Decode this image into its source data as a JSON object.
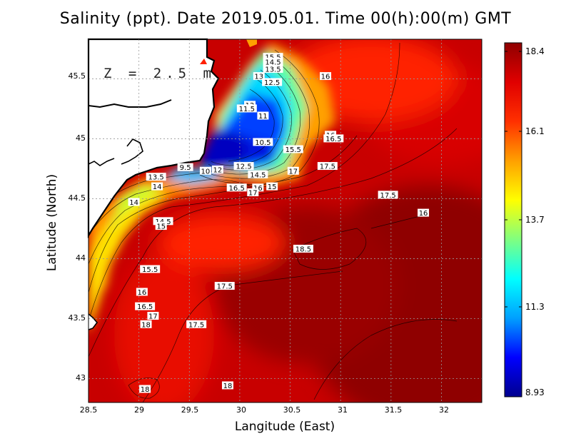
{
  "title": "Salinity (ppt). Date 2019.05.01. Time 00(h):00(m) GMT",
  "depth_label": "Z = 2.5 m",
  "axes": {
    "xlabel": "Langitude (East)",
    "ylabel": "Latitude (North)",
    "xlim": [
      28.5,
      32.4
    ],
    "ylim": [
      42.8,
      45.83
    ],
    "xticks": [
      "28.5",
      "29",
      "29.5",
      "30",
      "30.5",
      "31",
      "31.5",
      "32"
    ],
    "yticks": [
      "43",
      "43.5",
      "44",
      "44.5",
      "45",
      "45.5"
    ]
  },
  "colorbar": {
    "min": 8.93,
    "max": 18.4,
    "ticks": [
      "18.4",
      "16.1",
      "13.7",
      "11.3",
      "8.93"
    ],
    "colormap": [
      "#00008f",
      "#0000ff",
      "#00a0ff",
      "#00ffff",
      "#80ff80",
      "#ffff00",
      "#ffa000",
      "#ff3000",
      "#e00000",
      "#8f0000"
    ]
  },
  "chart_data": {
    "type": "heatmap",
    "title": "Salinity (ppt). Date 2019.05.01. Time 00(h):00(m) GMT",
    "xlabel": "Langitude (East)",
    "ylabel": "Latitude (North)",
    "grid": true,
    "contour_labels": [
      {
        "text": "15.5",
        "lon": 30.33,
        "lat": 45.68
      },
      {
        "text": "14.5",
        "lon": 30.33,
        "lat": 45.64
      },
      {
        "text": "13.5",
        "lon": 30.33,
        "lat": 45.58
      },
      {
        "text": "13",
        "lon": 30.19,
        "lat": 45.52
      },
      {
        "text": "12.5",
        "lon": 30.32,
        "lat": 45.47
      },
      {
        "text": "16",
        "lon": 30.85,
        "lat": 45.52
      },
      {
        "text": "12",
        "lon": 30.1,
        "lat": 45.28
      },
      {
        "text": "11.5",
        "lon": 30.07,
        "lat": 45.25
      },
      {
        "text": "11",
        "lon": 30.23,
        "lat": 45.19
      },
      {
        "text": "10.5",
        "lon": 30.23,
        "lat": 44.97
      },
      {
        "text": "15.5",
        "lon": 30.53,
        "lat": 44.91
      },
      {
        "text": "16",
        "lon": 30.9,
        "lat": 45.03
      },
      {
        "text": "16.5",
        "lon": 30.93,
        "lat": 45.0
      },
      {
        "text": "17.5",
        "lon": 30.87,
        "lat": 44.77
      },
      {
        "text": "17",
        "lon": 30.53,
        "lat": 44.73
      },
      {
        "text": "9.5",
        "lon": 29.46,
        "lat": 44.76
      },
      {
        "text": "10",
        "lon": 29.66,
        "lat": 44.73
      },
      {
        "text": "12",
        "lon": 29.78,
        "lat": 44.74
      },
      {
        "text": "12.5",
        "lon": 30.04,
        "lat": 44.77
      },
      {
        "text": "14.5",
        "lon": 30.18,
        "lat": 44.7
      },
      {
        "text": "13.5",
        "lon": 29.17,
        "lat": 44.68
      },
      {
        "text": "14",
        "lon": 29.18,
        "lat": 44.6
      },
      {
        "text": "16.5",
        "lon": 29.97,
        "lat": 44.59
      },
      {
        "text": "16",
        "lon": 30.18,
        "lat": 44.59
      },
      {
        "text": "15",
        "lon": 30.32,
        "lat": 44.6
      },
      {
        "text": "17",
        "lon": 30.13,
        "lat": 44.55
      },
      {
        "text": "17.5",
        "lon": 31.47,
        "lat": 44.53
      },
      {
        "text": "16",
        "lon": 31.82,
        "lat": 44.38
      },
      {
        "text": "14",
        "lon": 28.95,
        "lat": 44.47
      },
      {
        "text": "14.5",
        "lon": 29.24,
        "lat": 44.31
      },
      {
        "text": "15",
        "lon": 29.22,
        "lat": 44.27
      },
      {
        "text": "18.5",
        "lon": 30.63,
        "lat": 44.08
      },
      {
        "text": "15.5",
        "lon": 29.11,
        "lat": 43.91
      },
      {
        "text": "17.5",
        "lon": 29.85,
        "lat": 43.77
      },
      {
        "text": "16",
        "lon": 29.03,
        "lat": 43.72
      },
      {
        "text": "16.5",
        "lon": 29.06,
        "lat": 43.6
      },
      {
        "text": "17",
        "lon": 29.14,
        "lat": 43.52
      },
      {
        "text": "18",
        "lon": 29.07,
        "lat": 43.45
      },
      {
        "text": "17.5",
        "lon": 29.57,
        "lat": 43.45
      },
      {
        "text": "18",
        "lon": 29.06,
        "lat": 42.91
      },
      {
        "text": "18",
        "lon": 29.88,
        "lat": 42.94
      }
    ]
  }
}
